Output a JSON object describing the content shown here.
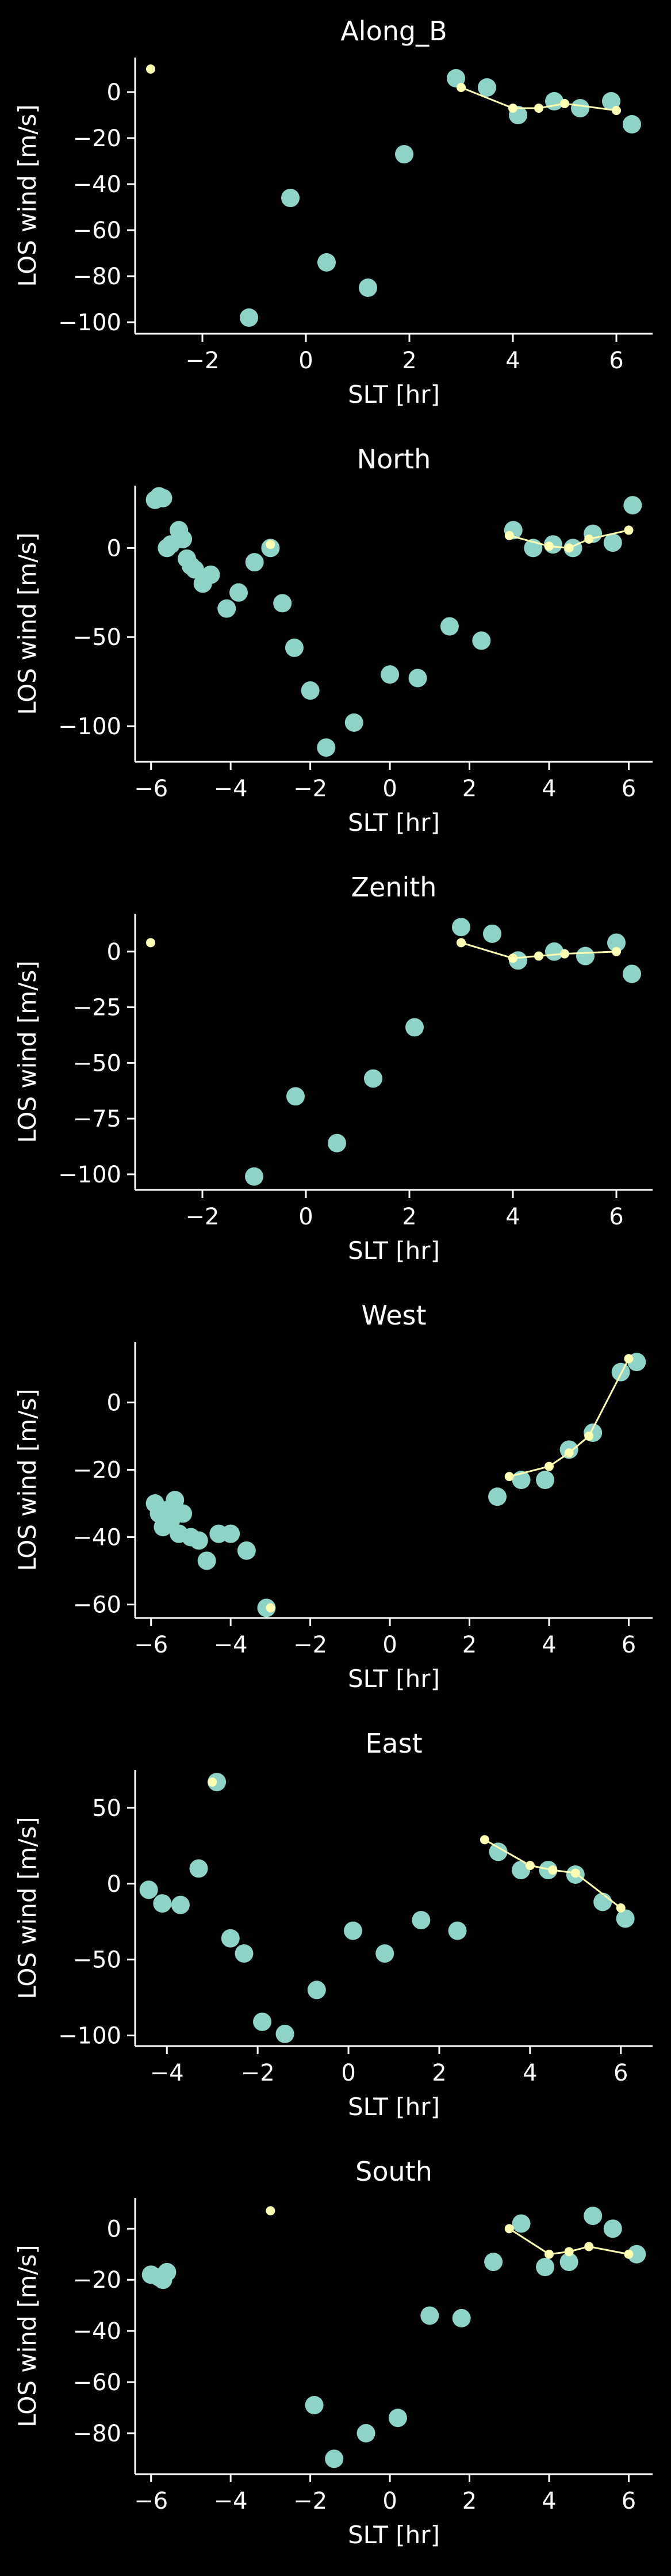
{
  "colors": {
    "background": "#000000",
    "axes": "#ffffff",
    "points": "#8dd3c7",
    "line": "#ffffb3"
  },
  "chart_data": [
    {
      "type": "scatter",
      "title": "Along_B",
      "xlabel": "SLT [hr]",
      "ylabel": "LOS wind [m/s]",
      "xlim": [
        -3.3,
        6.7
      ],
      "ylim": [
        -105,
        15
      ],
      "xticks": [
        -2,
        0,
        2,
        4,
        6
      ],
      "yticks": [
        0,
        -20,
        -40,
        -60,
        -80,
        -100
      ],
      "grid": false,
      "series": [
        {
          "kind": "points",
          "x": [
            -1.1,
            -0.3,
            0.4,
            1.2,
            1.9,
            2.9,
            3.5,
            4.1,
            4.8,
            5.3,
            5.9,
            6.3
          ],
          "y": [
            -98,
            -46,
            -74,
            -85,
            -27,
            6,
            2,
            -10,
            -4,
            -7,
            -4,
            -14
          ]
        },
        {
          "kind": "line",
          "x": [
            -3.0,
            3.0,
            4.0,
            4.5,
            5.0,
            6.0
          ],
          "y": [
            10,
            2,
            -7,
            -7,
            -5,
            -8
          ]
        }
      ]
    },
    {
      "type": "scatter",
      "title": "North",
      "xlabel": "SLT [hr]",
      "ylabel": "LOS wind [m/s]",
      "xlim": [
        -6.4,
        6.6
      ],
      "ylim": [
        -120,
        35
      ],
      "xticks": [
        -6,
        -4,
        -2,
        0,
        2,
        4,
        6
      ],
      "yticks": [
        0,
        -50,
        -100
      ],
      "grid": false,
      "series": [
        {
          "kind": "points",
          "x": [
            -5.9,
            -5.8,
            -5.7,
            -5.6,
            -5.5,
            -5.3,
            -5.2,
            -5.1,
            -5.0,
            -4.9,
            -4.7,
            -4.5,
            -4.1,
            -3.8,
            -3.4,
            -3.0,
            -2.7,
            -2.4,
            -2.0,
            -1.6,
            -0.9,
            0.0,
            0.7,
            1.5,
            2.3,
            3.1,
            3.6,
            4.1,
            4.6,
            5.1,
            5.6,
            6.1
          ],
          "y": [
            27,
            29,
            28,
            0,
            2,
            10,
            5,
            -6,
            -10,
            -12,
            -20,
            -15,
            -34,
            -25,
            -8,
            0,
            -31,
            -56,
            -80,
            -112,
            -98,
            -71,
            -73,
            -44,
            -52,
            10,
            0,
            2,
            0,
            8,
            3,
            24
          ]
        },
        {
          "kind": "line",
          "x": [
            -3.0,
            3.0,
            4.0,
            4.5,
            5.0,
            6.0
          ],
          "y": [
            2,
            7,
            1,
            0,
            5,
            10
          ]
        }
      ]
    },
    {
      "type": "scatter",
      "title": "Zenith",
      "xlabel": "SLT [hr]",
      "ylabel": "LOS wind [m/s]",
      "xlim": [
        -3.3,
        6.7
      ],
      "ylim": [
        -107,
        17
      ],
      "xticks": [
        -2,
        0,
        2,
        4,
        6
      ],
      "yticks": [
        0,
        -25,
        -50,
        -75,
        -100
      ],
      "grid": false,
      "series": [
        {
          "kind": "points",
          "x": [
            -1.0,
            -0.2,
            0.6,
            1.3,
            2.1,
            3.0,
            3.6,
            4.1,
            4.8,
            5.4,
            6.0,
            6.3
          ],
          "y": [
            -101,
            -65,
            -86,
            -57,
            -34,
            11,
            8,
            -4,
            0,
            -2,
            4,
            -10
          ]
        },
        {
          "kind": "line",
          "x": [
            -3.0,
            3.0,
            4.0,
            4.5,
            5.0,
            6.0
          ],
          "y": [
            4,
            4,
            -3,
            -2,
            -1,
            0
          ]
        }
      ]
    },
    {
      "type": "scatter",
      "title": "West",
      "xlabel": "SLT [hr]",
      "ylabel": "LOS wind [m/s]",
      "xlim": [
        -6.4,
        6.6
      ],
      "ylim": [
        -64,
        18
      ],
      "xticks": [
        -6,
        -4,
        -2,
        0,
        2,
        4,
        6
      ],
      "yticks": [
        0,
        -20,
        -40,
        -60
      ],
      "grid": false,
      "series": [
        {
          "kind": "points",
          "x": [
            -5.9,
            -5.8,
            -5.7,
            -5.6,
            -5.5,
            -5.4,
            -5.3,
            -5.2,
            -5.0,
            -4.8,
            -4.6,
            -4.3,
            -4.0,
            -3.6,
            -3.1,
            2.7,
            3.3,
            3.9,
            4.5,
            5.1,
            5.8,
            6.2
          ],
          "y": [
            -30,
            -33,
            -37,
            -32,
            -35,
            -29,
            -39,
            -33,
            -40,
            -41,
            -47,
            -39,
            -39,
            -44,
            -61,
            -28,
            -23,
            -23,
            -14,
            -9,
            9,
            12
          ]
        },
        {
          "kind": "line",
          "x": [
            -3.0,
            3.0,
            4.0,
            4.5,
            5.0,
            6.0
          ],
          "y": [
            -61,
            -22,
            -19,
            -15,
            -10,
            13
          ]
        }
      ]
    },
    {
      "type": "scatter",
      "title": "East",
      "xlabel": "SLT [hr]",
      "ylabel": "LOS wind [m/s]",
      "xlim": [
        -4.7,
        6.7
      ],
      "ylim": [
        -107,
        75
      ],
      "xticks": [
        -4,
        -2,
        0,
        2,
        4,
        6
      ],
      "yticks": [
        50,
        0,
        -50,
        -100
      ],
      "grid": false,
      "series": [
        {
          "kind": "points",
          "x": [
            -4.4,
            -4.1,
            -3.7,
            -3.3,
            -2.9,
            -2.6,
            -2.3,
            -1.9,
            -1.4,
            -0.7,
            0.1,
            0.8,
            1.6,
            2.4,
            3.3,
            3.8,
            4.4,
            5.0,
            5.6,
            6.1
          ],
          "y": [
            -4,
            -13,
            -14,
            10,
            67,
            -36,
            -46,
            -91,
            -99,
            -70,
            -31,
            -46,
            -24,
            -31,
            21,
            9,
            9,
            6,
            -12,
            -23
          ]
        },
        {
          "kind": "line",
          "x": [
            -3.0,
            3.0,
            4.0,
            4.5,
            5.0,
            6.0
          ],
          "y": [
            67,
            29,
            12,
            9,
            7,
            -16
          ]
        }
      ]
    },
    {
      "type": "scatter",
      "title": "South",
      "xlabel": "SLT [hr]",
      "ylabel": "LOS wind [m/s]",
      "xlim": [
        -6.4,
        6.6
      ],
      "ylim": [
        -96,
        12
      ],
      "xticks": [
        -6,
        -4,
        -2,
        0,
        2,
        4,
        6
      ],
      "yticks": [
        0,
        -20,
        -40,
        -60,
        -80
      ],
      "grid": false,
      "series": [
        {
          "kind": "points",
          "x": [
            -6.0,
            -5.8,
            -5.7,
            -5.6,
            -1.9,
            -1.4,
            -0.6,
            0.2,
            1.0,
            1.8,
            2.6,
            3.3,
            3.9,
            4.5,
            5.1,
            5.6,
            6.2
          ],
          "y": [
            -18,
            -19,
            -20,
            -17,
            -69,
            -90,
            -80,
            -74,
            -34,
            -35,
            -13,
            2,
            -15,
            -13,
            5,
            0,
            -10
          ]
        },
        {
          "kind": "line",
          "x": [
            -3.0,
            3.0,
            4.0,
            4.5,
            5.0,
            6.0
          ],
          "y": [
            7,
            0,
            -10,
            -9,
            -7,
            -10
          ]
        }
      ]
    }
  ]
}
